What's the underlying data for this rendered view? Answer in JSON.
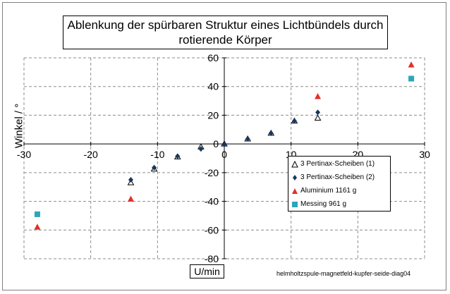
{
  "chart_data": {
    "type": "scatter",
    "title": "Ablenkung der spürbaren Struktur eines Lichtbündels durch rotierende Körper",
    "title_lines": [
      "Ablenkung der spürbaren Struktur eines Lichtbündels durch",
      "rotierende Körper"
    ],
    "xlabel": "U/min",
    "ylabel": "Winkel / °",
    "footnote": "helmholtzspule-magnetfeld-kupfer-seide-diag04",
    "xlim": [
      -30,
      30
    ],
    "ylim": [
      -80,
      60
    ],
    "x_ticks": [
      -30,
      -20,
      -10,
      0,
      10,
      20,
      30
    ],
    "y_ticks": [
      -80,
      -60,
      -40,
      -20,
      0,
      20,
      40,
      60
    ],
    "grid": "horizontal-dashed",
    "legend_position": "lower-right",
    "series": [
      {
        "name": "3 Pertinax-Scheiben (1)",
        "marker": "triangle-open",
        "color": "#000000",
        "x": [
          -14,
          -10.5,
          -7,
          -3.5,
          0,
          3.5,
          7,
          10.5,
          14
        ],
        "y": [
          -27,
          -17.5,
          -9,
          -2,
          0,
          3.5,
          7.5,
          16,
          18
        ]
      },
      {
        "name": "3 Pertinax-Scheiben (2)",
        "marker": "diamond",
        "color": "#17375e",
        "x": [
          -14,
          -10.5,
          -7,
          -3.5,
          0,
          3.5,
          7,
          10.5,
          14
        ],
        "y": [
          -25,
          -16.5,
          -8.5,
          -3.5,
          -0.5,
          3.5,
          7.5,
          16,
          22
        ]
      },
      {
        "name": "Aluminium 1161 g",
        "marker": "triangle",
        "color": "#e0302a",
        "x": [
          -28,
          -14,
          14,
          28
        ],
        "y": [
          -58,
          -38.5,
          33,
          55
        ]
      },
      {
        "name": "Messing 961 g",
        "marker": "square",
        "color": "#2ca6b8",
        "x": [
          -28,
          28
        ],
        "y": [
          -49,
          45.5
        ]
      }
    ]
  }
}
